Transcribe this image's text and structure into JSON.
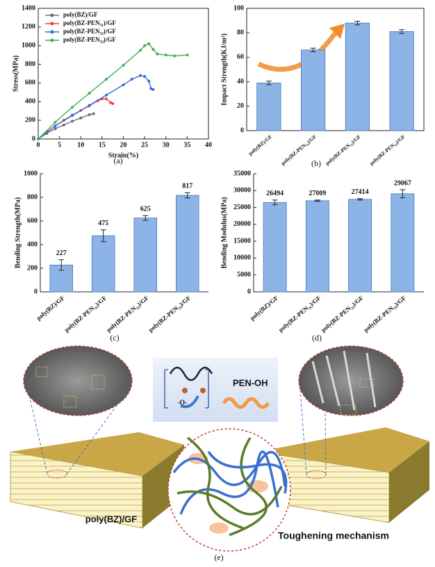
{
  "chart_data": [
    {
      "type": "line",
      "panel_label": "(a)",
      "xlabel": "Strain(%)",
      "ylabel": "Stress(MPa)",
      "xlim": [
        0,
        40
      ],
      "xticks": [
        0,
        5,
        10,
        15,
        20,
        25,
        30,
        35,
        40
      ],
      "ylim": [
        0,
        1400
      ],
      "yticks": [
        0,
        200,
        400,
        600,
        800,
        1000,
        1200,
        1400
      ],
      "legend": "upper left",
      "frame": true,
      "series": [
        {
          "name": "poly(BZ)/GF",
          "color": "#6e6e6e",
          "x": [
            0,
            2,
            4,
            6,
            8,
            10,
            12,
            13
          ],
          "values": [
            0,
            60,
            110,
            150,
            190,
            225,
            260,
            270
          ]
        },
        {
          "name": "poly(BZ-PEN₃₁)/GF",
          "color": "#e8463c",
          "x": [
            0,
            2,
            4,
            6,
            8,
            10,
            12,
            14,
            15,
            16,
            17,
            17.5
          ],
          "values": [
            0,
            75,
            140,
            200,
            255,
            305,
            355,
            410,
            430,
            430,
            390,
            380
          ]
        },
        {
          "name": "poly(BZ-PEN₃₂)/GF",
          "color": "#2f6fe0",
          "x": [
            0,
            4,
            8,
            12,
            16,
            20,
            22,
            24,
            25,
            26,
            26.5,
            27
          ],
          "values": [
            0,
            140,
            250,
            360,
            470,
            580,
            640,
            680,
            670,
            620,
            540,
            530
          ]
        },
        {
          "name": "poly(BZ-PEN₃₃)/GF",
          "color": "#3fae5a",
          "x": [
            0,
            4,
            8,
            12,
            16,
            20,
            24,
            25,
            26,
            27,
            28,
            30,
            32,
            35
          ],
          "values": [
            0,
            180,
            340,
            490,
            640,
            790,
            950,
            1000,
            1020,
            960,
            910,
            900,
            890,
            900
          ]
        }
      ]
    },
    {
      "type": "bar",
      "panel_label": "(b)",
      "ylabel": "Impact Strength(KJ/m²)",
      "categories": [
        "poly(BZ)/GF",
        "poly(BZ-PEN₃₁)/GF",
        "poly(BZ-PEN₃₂)/GF",
        "poly(BZ-PEN₃₃)/GF"
      ],
      "values": [
        39,
        66,
        88,
        81
      ],
      "errors": [
        1.5,
        1.5,
        1.5,
        1.5
      ],
      "color": "#8db4e6",
      "ylim": [
        0,
        100
      ],
      "yticks": [
        0,
        20,
        40,
        60,
        80,
        100
      ],
      "frame": true
    },
    {
      "type": "bar",
      "panel_label": "(c)",
      "ylabel": "Bending Strength(MPa)",
      "categories": [
        "poly(BZ)/GF",
        "poly(BZ-PEN₃₁)/GF",
        "poly(BZ-PEN₃₂)/GF",
        "poly(BZ-PEN₃₃)/GF"
      ],
      "values": [
        227,
        475,
        625,
        817
      ],
      "errors": [
        45,
        50,
        20,
        22
      ],
      "color": "#8db4e6",
      "ylim": [
        0,
        1000
      ],
      "yticks": [
        0,
        200,
        400,
        600,
        800,
        1000
      ],
      "frame": false
    },
    {
      "type": "bar",
      "panel_label": "(d)",
      "ylabel": "Bending Modulus(MPa)",
      "categories": [
        "poly(BZ)/GF",
        "poly(BZ-PEN₃₁)/GF",
        "poly(BZ-PEN₃₂)/GF",
        "poly(BZ-PEN₃₃)/GF"
      ],
      "values": [
        26494,
        27009,
        27414,
        29067
      ],
      "errors": [
        700,
        200,
        200,
        1200
      ],
      "color": "#8db4e6",
      "ylim": [
        0,
        35000
      ],
      "yticks": [
        0,
        5000,
        10000,
        15000,
        20000,
        25000,
        30000,
        35000
      ],
      "frame": false
    }
  ],
  "diagram": {
    "panel_label": "(e)",
    "linkage": "-O-",
    "additive": "PEN-OH",
    "material": "poly(BZ)/GF",
    "mechanism": "Toughening mechanism"
  }
}
